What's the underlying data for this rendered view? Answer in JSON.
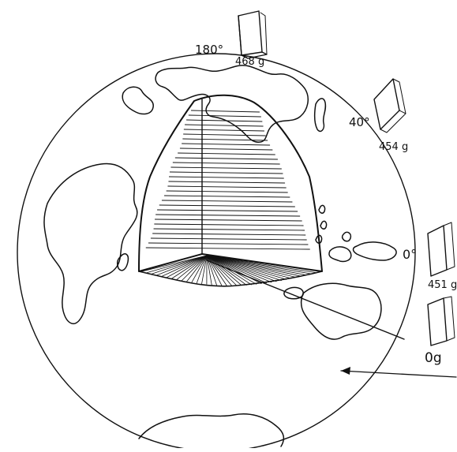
{
  "colors": {
    "ink": "#111111",
    "paper": "#ffffff"
  },
  "annotations": {
    "angle_180": "180°",
    "angle_40": "40°",
    "angle_0": "0°"
  },
  "books": [
    {
      "id": "book-top",
      "weight": "468 g"
    },
    {
      "id": "book-40",
      "weight": "454 g"
    },
    {
      "id": "book-0",
      "weight": "451 g"
    },
    {
      "id": "book-outside",
      "weight": "0g"
    }
  ],
  "icons": [
    "book-icon",
    "globe-icon",
    "pointer-arrow-icon"
  ]
}
